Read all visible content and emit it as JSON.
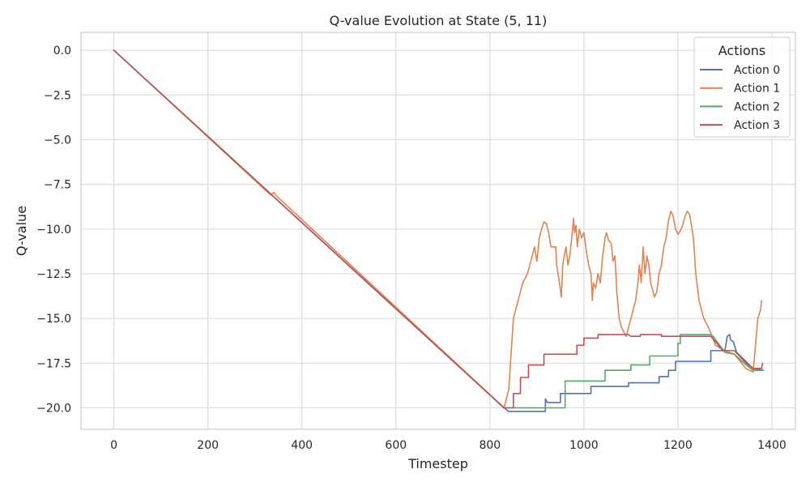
{
  "chart_data": {
    "type": "line",
    "title": "Q-value Evolution at State (5, 11)",
    "xlabel": "Timestep",
    "ylabel": "Q-value",
    "xlim": [
      -70,
      1450
    ],
    "ylim": [
      -21.2,
      1.0
    ],
    "x_ticks": [
      0,
      200,
      400,
      600,
      800,
      1000,
      1200,
      1400
    ],
    "x_tick_labels": [
      "0",
      "200",
      "400",
      "600",
      "800",
      "1000",
      "1200",
      "1400"
    ],
    "y_ticks": [
      0,
      -2.5,
      -5,
      -7.5,
      -10,
      -12.5,
      -15,
      -17.5,
      -20
    ],
    "y_tick_labels": [
      "0.0",
      "−2.5",
      "−5.0",
      "−7.5",
      "−10.0",
      "−12.5",
      "−15.0",
      "−17.5",
      "−20.0"
    ],
    "grid": true,
    "legend": {
      "title": "Actions",
      "placement": "top-right"
    },
    "series": [
      {
        "name": "Action 0",
        "color": "#4c72b0",
        "points": [
          [
            0,
            0
          ],
          [
            830,
            -20.0
          ],
          [
            840,
            -20.2
          ],
          [
            918,
            -20.2
          ],
          [
            918,
            -19.5
          ],
          [
            922,
            -19.7
          ],
          [
            950,
            -19.7
          ],
          [
            950,
            -19.2
          ],
          [
            1015,
            -19.2
          ],
          [
            1015,
            -18.8
          ],
          [
            1095,
            -18.8
          ],
          [
            1095,
            -18.6
          ],
          [
            1160,
            -18.6
          ],
          [
            1160,
            -18.25
          ],
          [
            1180,
            -18.25
          ],
          [
            1180,
            -17.9
          ],
          [
            1195,
            -17.9
          ],
          [
            1195,
            -17.4
          ],
          [
            1270,
            -17.4
          ],
          [
            1270,
            -16.8
          ],
          [
            1300,
            -16.8
          ],
          [
            1305,
            -16.0
          ],
          [
            1310,
            -15.9
          ],
          [
            1312,
            -16.2
          ],
          [
            1318,
            -16.3
          ],
          [
            1325,
            -16.9
          ],
          [
            1360,
            -17.8
          ],
          [
            1382,
            -17.9
          ]
        ]
      },
      {
        "name": "Action 1",
        "color": "#dd8452",
        "points": [
          [
            0,
            0
          ],
          [
            334,
            -8.1
          ],
          [
            340,
            -7.95
          ],
          [
            346,
            -8.15
          ],
          [
            830,
            -20.0
          ],
          [
            840,
            -19.0
          ],
          [
            845,
            -17.0
          ],
          [
            850,
            -15.0
          ],
          [
            855,
            -14.5
          ],
          [
            860,
            -14.0
          ],
          [
            870,
            -13.0
          ],
          [
            880,
            -12.5
          ],
          [
            890,
            -11.5
          ],
          [
            895,
            -11.0
          ],
          [
            900,
            -11.8
          ],
          [
            905,
            -10.5
          ],
          [
            910,
            -10.0
          ],
          [
            915,
            -9.6
          ],
          [
            920,
            -9.7
          ],
          [
            925,
            -10.2
          ],
          [
            930,
            -11.0
          ],
          [
            940,
            -11.0
          ],
          [
            942,
            -12.0
          ],
          [
            945,
            -12.5
          ],
          [
            948,
            -13.0
          ],
          [
            952,
            -13.8
          ],
          [
            955,
            -12.0
          ],
          [
            958,
            -11.5
          ],
          [
            962,
            -11.0
          ],
          [
            966,
            -12.0
          ],
          [
            970,
            -11.5
          ],
          [
            974,
            -10.5
          ],
          [
            978,
            -9.4
          ],
          [
            980,
            -10.2
          ],
          [
            983,
            -9.8
          ],
          [
            986,
            -11.0
          ],
          [
            990,
            -10.0
          ],
          [
            995,
            -10.5
          ],
          [
            1000,
            -10.2
          ],
          [
            1005,
            -11.2
          ],
          [
            1010,
            -12.0
          ],
          [
            1015,
            -12.5
          ],
          [
            1018,
            -14.0
          ],
          [
            1020,
            -13.0
          ],
          [
            1025,
            -13.3
          ],
          [
            1030,
            -12.5
          ],
          [
            1035,
            -13.0
          ],
          [
            1040,
            -11.5
          ],
          [
            1045,
            -10.5
          ],
          [
            1048,
            -10.2
          ],
          [
            1052,
            -10.6
          ],
          [
            1058,
            -10.8
          ],
          [
            1062,
            -11.8
          ],
          [
            1066,
            -11.5
          ],
          [
            1070,
            -13.5
          ],
          [
            1075,
            -15.0
          ],
          [
            1080,
            -15.5
          ],
          [
            1090,
            -16.0
          ],
          [
            1100,
            -15.0
          ],
          [
            1110,
            -14.0
          ],
          [
            1115,
            -13.0
          ],
          [
            1118,
            -12.0
          ],
          [
            1122,
            -13.0
          ],
          [
            1126,
            -11.0
          ],
          [
            1130,
            -12.5
          ],
          [
            1134,
            -11.5
          ],
          [
            1138,
            -12.0
          ],
          [
            1142,
            -13.0
          ],
          [
            1150,
            -13.8
          ],
          [
            1155,
            -13.5
          ],
          [
            1160,
            -12.5
          ],
          [
            1165,
            -12.0
          ],
          [
            1170,
            -11.0
          ],
          [
            1175,
            -10.5
          ],
          [
            1180,
            -9.5
          ],
          [
            1185,
            -9.0
          ],
          [
            1190,
            -9.3
          ],
          [
            1195,
            -10.0
          ],
          [
            1200,
            -10.3
          ],
          [
            1205,
            -10.1
          ],
          [
            1210,
            -9.8
          ],
          [
            1215,
            -9.3
          ],
          [
            1220,
            -9.0
          ],
          [
            1225,
            -9.2
          ],
          [
            1230,
            -10.0
          ],
          [
            1233,
            -10.5
          ],
          [
            1238,
            -12.5
          ],
          [
            1245,
            -14.0
          ],
          [
            1255,
            -15.0
          ],
          [
            1265,
            -15.5
          ],
          [
            1280,
            -16.5
          ],
          [
            1300,
            -16.8
          ],
          [
            1320,
            -17.0
          ],
          [
            1345,
            -17.8
          ],
          [
            1360,
            -18.0
          ],
          [
            1365,
            -16.5
          ],
          [
            1370,
            -15.0
          ],
          [
            1376,
            -14.5
          ],
          [
            1378,
            -14.0
          ]
        ]
      },
      {
        "name": "Action 2",
        "color": "#55a868",
        "points": [
          [
            0,
            0
          ],
          [
            830,
            -20.0
          ],
          [
            850,
            -20.0
          ],
          [
            960,
            -20.0
          ],
          [
            960,
            -18.5
          ],
          [
            1045,
            -18.5
          ],
          [
            1045,
            -17.9
          ],
          [
            1100,
            -17.9
          ],
          [
            1100,
            -17.6
          ],
          [
            1140,
            -17.6
          ],
          [
            1140,
            -17.1
          ],
          [
            1200,
            -17.1
          ],
          [
            1200,
            -16.4
          ],
          [
            1205,
            -16.4
          ],
          [
            1205,
            -15.9
          ],
          [
            1270,
            -15.9
          ],
          [
            1275,
            -16.0
          ],
          [
            1300,
            -16.9
          ],
          [
            1320,
            -17.0
          ],
          [
            1345,
            -17.6
          ],
          [
            1360,
            -17.9
          ],
          [
            1382,
            -17.9
          ]
        ]
      },
      {
        "name": "Action 3",
        "color": "#c44e52",
        "points": [
          [
            0,
            0
          ],
          [
            830,
            -20.0
          ],
          [
            850,
            -20.0
          ],
          [
            850,
            -19.2
          ],
          [
            865,
            -19.2
          ],
          [
            865,
            -18.3
          ],
          [
            882,
            -18.3
          ],
          [
            882,
            -17.6
          ],
          [
            915,
            -17.6
          ],
          [
            915,
            -17.0
          ],
          [
            985,
            -17.0
          ],
          [
            985,
            -16.5
          ],
          [
            1000,
            -16.5
          ],
          [
            1000,
            -16.1
          ],
          [
            1030,
            -16.1
          ],
          [
            1030,
            -15.9
          ],
          [
            1095,
            -15.9
          ],
          [
            1100,
            -16.0
          ],
          [
            1120,
            -16.0
          ],
          [
            1120,
            -15.9
          ],
          [
            1165,
            -15.9
          ],
          [
            1165,
            -16.0
          ],
          [
            1270,
            -16.0
          ],
          [
            1280,
            -16.3
          ],
          [
            1295,
            -16.8
          ],
          [
            1320,
            -16.8
          ],
          [
            1345,
            -17.5
          ],
          [
            1360,
            -17.8
          ],
          [
            1378,
            -17.8
          ],
          [
            1380,
            -17.5
          ]
        ]
      }
    ]
  }
}
